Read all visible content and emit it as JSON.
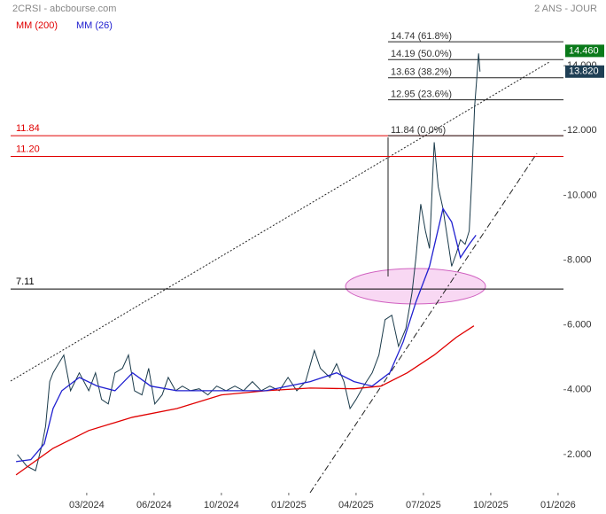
{
  "chart_data": {
    "type": "line",
    "title": "2CRSI - abcbourse.com",
    "subtitle": "2 ANS - JOUR",
    "xlim": [
      -1.13,
      7.08
    ],
    "xticks": [
      {
        "value": 0,
        "label": "03/2024"
      },
      {
        "value": 1,
        "label": "06/2024"
      },
      {
        "value": 2,
        "label": "10/2024"
      },
      {
        "value": 3,
        "label": "01/2025"
      },
      {
        "value": 4,
        "label": "04/2025"
      },
      {
        "value": 5,
        "label": "07/2025"
      },
      {
        "value": 6,
        "label": "10/2025"
      },
      {
        "value": 7,
        "label": "01/2026"
      }
    ],
    "ylim": [
      0.82,
      16.03
    ],
    "yticks": [
      {
        "value": 2,
        "label": "2.000"
      },
      {
        "value": 4,
        "label": "4.000"
      },
      {
        "value": 6,
        "label": "6.000"
      },
      {
        "value": 8,
        "label": "8.000"
      },
      {
        "value": 10,
        "label": "10.000"
      },
      {
        "value": 12,
        "label": "12.000"
      },
      {
        "value": 14,
        "label": "14.000"
      }
    ],
    "series": [
      {
        "color": "#1a3a4a",
        "x": [
          -1.03,
          -0.89,
          -0.76,
          -0.66,
          -0.61,
          -0.55,
          -0.5,
          -0.42,
          -0.34,
          -0.24,
          -0.11,
          0.03,
          0.13,
          0.22,
          0.32,
          0.42,
          0.53,
          0.62,
          0.71,
          0.82,
          0.92,
          1.01,
          1.12,
          1.21,
          1.32,
          1.42,
          1.54,
          1.67,
          1.8,
          1.93,
          2.07,
          2.2,
          2.33,
          2.46,
          2.59,
          2.72,
          2.86,
          2.99,
          3.12,
          3.25,
          3.38,
          3.47,
          3.61,
          3.71,
          3.82,
          3.91,
          4.0,
          4.11,
          4.24,
          4.34,
          4.43,
          4.53,
          4.63,
          4.74,
          4.83,
          4.89,
          4.96,
          5.03,
          5.09,
          5.16,
          5.22,
          5.29,
          5.36,
          5.42,
          5.49,
          5.55,
          5.62,
          5.68,
          5.72,
          5.76,
          5.79,
          5.82,
          5.84
        ],
        "values": [
          2.0,
          1.64,
          1.5,
          2.33,
          2.88,
          4.25,
          4.52,
          4.8,
          5.07,
          3.97,
          4.52,
          3.97,
          4.52,
          3.7,
          3.56,
          4.52,
          4.66,
          5.07,
          3.97,
          3.84,
          4.66,
          3.56,
          3.84,
          4.38,
          3.97,
          4.11,
          3.97,
          4.03,
          3.84,
          4.11,
          3.97,
          4.11,
          3.97,
          4.25,
          3.97,
          4.11,
          3.97,
          4.38,
          3.97,
          4.25,
          5.21,
          4.66,
          4.38,
          4.8,
          4.25,
          3.42,
          3.7,
          4.11,
          4.52,
          5.07,
          6.16,
          6.3,
          5.34,
          5.89,
          6.99,
          8.08,
          9.73,
          8.9,
          8.36,
          11.64,
          10.27,
          9.59,
          8.63,
          7.81,
          8.22,
          8.63,
          8.49,
          8.9,
          10.55,
          12.74,
          13.56,
          14.38,
          13.82
        ]
      },
      {
        "name": "MM (200)",
        "color": "#e00000",
        "x": [
          -1.05,
          -0.5,
          0.03,
          0.68,
          1.34,
          2.0,
          2.66,
          3.32,
          3.97,
          4.37,
          4.76,
          5.16,
          5.49,
          5.75
        ],
        "values": [
          1.37,
          2.19,
          2.74,
          3.15,
          3.42,
          3.84,
          3.97,
          4.05,
          4.03,
          4.11,
          4.52,
          5.07,
          5.62,
          5.97
        ]
      },
      {
        "name": "MM (26)",
        "color": "#2020d0",
        "x": [
          -1.05,
          -0.83,
          -0.63,
          -0.5,
          -0.37,
          -0.11,
          0.16,
          0.42,
          0.68,
          0.95,
          1.34,
          2.0,
          2.66,
          3.32,
          3.71,
          3.97,
          4.24,
          4.5,
          4.7,
          4.89,
          5.09,
          5.29,
          5.42,
          5.55,
          5.68,
          5.78
        ],
        "values": [
          1.78,
          1.84,
          2.33,
          3.42,
          3.97,
          4.38,
          4.11,
          3.97,
          4.52,
          4.11,
          3.97,
          3.97,
          3.97,
          4.25,
          4.52,
          4.25,
          4.11,
          4.52,
          5.48,
          6.71,
          7.81,
          9.59,
          9.18,
          8.08,
          8.49,
          8.77
        ]
      }
    ],
    "levels": [
      {
        "value": 11.84,
        "label": "11.84",
        "color": "#e00000"
      },
      {
        "value": 11.2,
        "label": "11.20",
        "color": "#e00000"
      },
      {
        "value": 7.11,
        "label": "7.11",
        "color": "#000000"
      }
    ],
    "fib_levels": [
      {
        "value": 14.74,
        "label": "14.74  (61.8%)"
      },
      {
        "value": 14.19,
        "label": "14.19  (50.0%)"
      },
      {
        "value": 13.63,
        "label": "13.63  (38.2%)"
      },
      {
        "value": 12.95,
        "label": "12.95  (23.6%)"
      },
      {
        "value": 11.84,
        "label": "11.84  (0.0%)"
      }
    ],
    "price_tags": [
      {
        "value": 14.46,
        "label": "14.460",
        "color": "#0a7a1a"
      },
      {
        "value": 13.82,
        "label": "13.820",
        "color": "#1f3f55"
      }
    ]
  }
}
